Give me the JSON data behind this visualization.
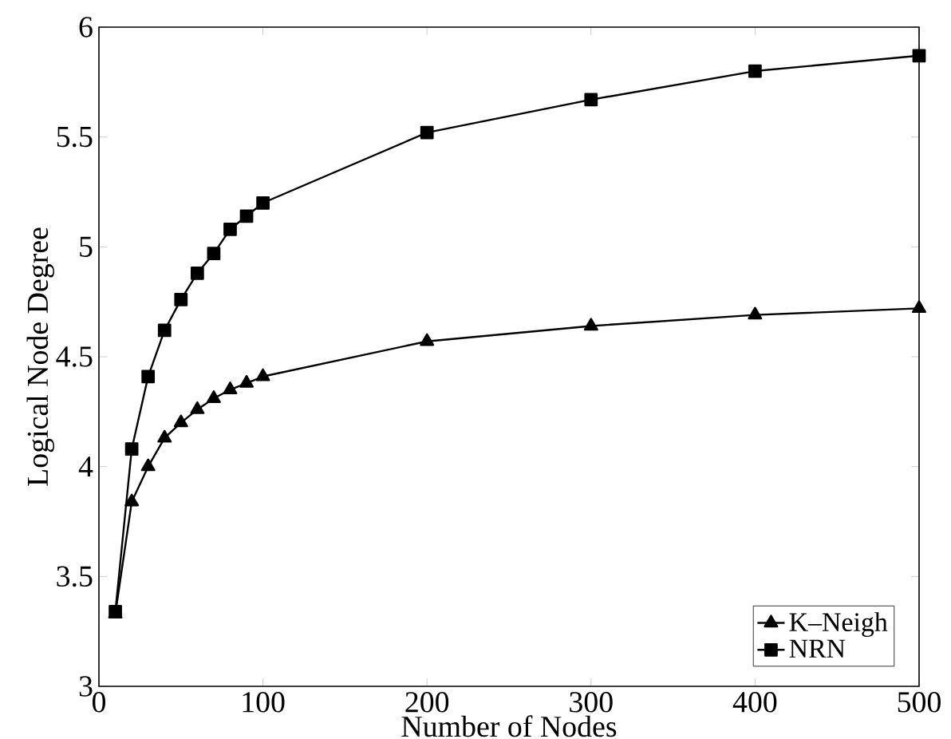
{
  "chart_data": {
    "type": "line",
    "xlabel": "Number of Nodes",
    "ylabel": "Logical Node Degree",
    "x": [
      10,
      20,
      30,
      40,
      50,
      60,
      70,
      80,
      90,
      100,
      200,
      300,
      400,
      500
    ],
    "series": [
      {
        "name": "K–Neigh",
        "color": "#000000",
        "marker": "triangle",
        "values": [
          3.33,
          3.84,
          4.0,
          4.13,
          4.2,
          4.26,
          4.31,
          4.35,
          4.38,
          4.41,
          4.57,
          4.64,
          4.69,
          4.72
        ]
      },
      {
        "name": "NRN",
        "color": "#000000",
        "marker": "square",
        "values": [
          3.34,
          4.08,
          4.41,
          4.62,
          4.76,
          4.88,
          4.97,
          5.08,
          5.14,
          5.2,
          5.52,
          5.67,
          5.8,
          5.87
        ]
      }
    ],
    "xlim": [
      0,
      500
    ],
    "ylim": [
      3,
      6
    ],
    "xticks": [
      0,
      100,
      200,
      300,
      400,
      500
    ],
    "yticks": [
      3,
      3.5,
      4,
      4.5,
      5,
      5.5,
      6
    ],
    "legend": "bottom right",
    "grid": false,
    "line_style": "solid"
  }
}
